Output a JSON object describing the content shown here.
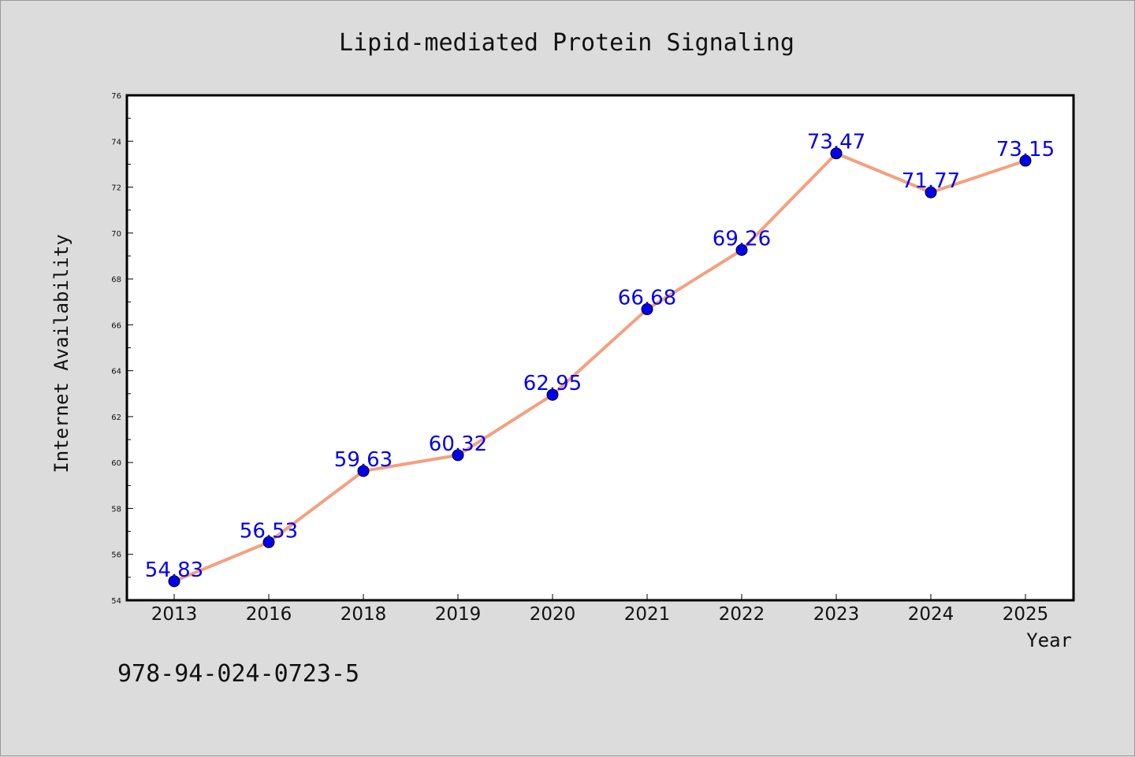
{
  "chart_data": {
    "type": "line",
    "title": "Lipid-mediated Protein Signaling",
    "xlabel": "Year",
    "ylabel": "Internet Availability",
    "categories": [
      "2013",
      "2016",
      "2018",
      "2019",
      "2020",
      "2021",
      "2022",
      "2023",
      "2024",
      "2025"
    ],
    "values": [
      54.83,
      56.53,
      59.63,
      60.32,
      62.95,
      66.68,
      69.26,
      73.47,
      71.77,
      73.15
    ],
    "value_labels": [
      "54.83",
      "56.53",
      "59.63",
      "60.32",
      "62.95",
      "66.68",
      "69.26",
      "73.47",
      "71.77",
      "73.15"
    ],
    "ylim": [
      54,
      76
    ],
    "yticks": [
      54,
      56,
      58,
      60,
      62,
      64,
      66,
      68,
      70,
      72,
      74,
      76
    ],
    "grid": false,
    "legend": "none",
    "colors": {
      "line": "#f4a07f",
      "marker": "#0000ee",
      "data_label": "#0000ee",
      "background": "#dcdcdc",
      "plot_background": "#ffffff"
    }
  },
  "footer": {
    "isbn": "978-94-024-0723-5"
  }
}
